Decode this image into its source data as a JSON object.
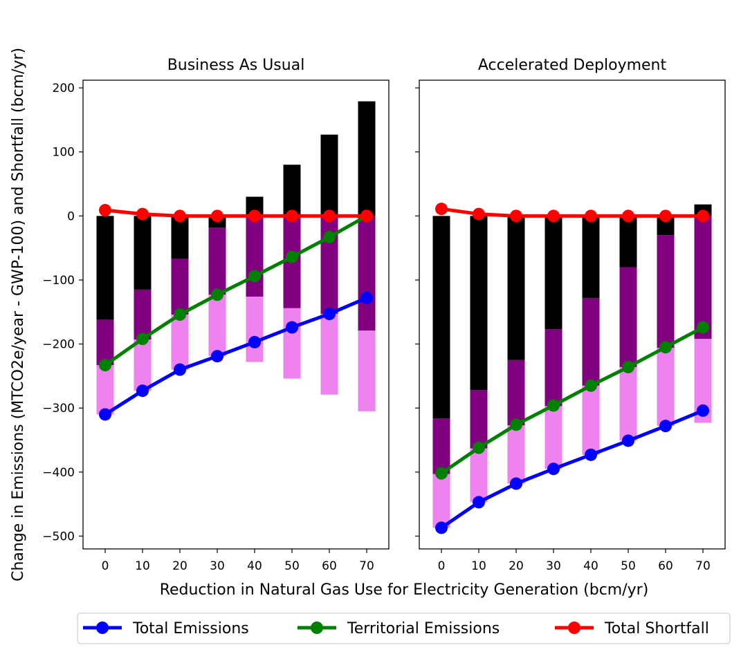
{
  "chart_data": {
    "type": "bar",
    "x": [
      0,
      10,
      20,
      30,
      40,
      50,
      60,
      70
    ],
    "xlabel": "Reduction in Natural Gas Use for Electricity Generation (bcm/yr)",
    "ylabel": "Change in Emissions (MTCO2e/year - GWP-100) and Shortfall (bcm/yr)",
    "ylim": [
      -520,
      212
    ],
    "yticks": [
      200,
      100,
      0,
      -100,
      -200,
      -300,
      -400,
      -500
    ],
    "ytick_labels": [
      "200",
      "100",
      "0",
      "−100",
      "−200",
      "−300",
      "−400",
      "−500"
    ],
    "xtick_labels": [
      "0",
      "10",
      "20",
      "30",
      "40",
      "50",
      "60",
      "70"
    ],
    "grid": false,
    "legend": {
      "placement": "bottom-center",
      "entries": [
        "Total Emissions",
        "Territorial Emissions",
        "Total Shortfall"
      ]
    },
    "colors": {
      "black_bar": "#000000",
      "purple_bar": "#800080",
      "violet_bar": "#ee82ee",
      "total_emissions": "#0000ff",
      "territorial_emissions": "#008000",
      "total_shortfall": "#ff0000"
    },
    "panels": [
      {
        "title": "Business As Usual",
        "bars": {
          "black": [
            [
              0,
              -162
            ],
            [
              0,
              -115
            ],
            [
              0,
              -67
            ],
            [
              0,
              -18
            ],
            [
              0,
              30
            ],
            [
              0,
              80
            ],
            [
              0,
              127
            ],
            [
              0,
              179
            ]
          ],
          "purple": [
            [
              -162,
              -233
            ],
            [
              -115,
              -193
            ],
            [
              -67,
              -154
            ],
            [
              -18,
              -123
            ],
            [
              0,
              -126
            ],
            [
              0,
              -144
            ],
            [
              0,
              -153
            ],
            [
              0,
              -179
            ]
          ],
          "violet": [
            [
              -233,
              -310
            ],
            [
              -193,
              -273
            ],
            [
              -154,
              -240
            ],
            [
              -123,
              -219
            ],
            [
              -126,
              -228
            ],
            [
              -144,
              -254
            ],
            [
              -153,
              -279
            ],
            [
              -179,
              -305
            ]
          ]
        },
        "lines": {
          "Total Emissions": [
            -310,
            -273,
            -240,
            -219,
            -197,
            -174,
            -153,
            -128
          ],
          "Territorial Emissions": [
            -233,
            -192,
            -154,
            -123,
            -94,
            -64,
            -33,
            0
          ],
          "Total Shortfall": [
            9,
            3,
            0,
            0,
            0,
            0,
            0,
            0
          ]
        }
      },
      {
        "title": "Accelerated Deployment",
        "bars": {
          "black": [
            [
              0,
              -316
            ],
            [
              0,
              -272
            ],
            [
              0,
              -225
            ],
            [
              0,
              -177
            ],
            [
              0,
              -128
            ],
            [
              0,
              -80
            ],
            [
              0,
              -30
            ],
            [
              0,
              18
            ]
          ],
          "purple": [
            [
              -316,
              -403
            ],
            [
              -272,
              -363
            ],
            [
              -225,
              -327
            ],
            [
              -177,
              -297
            ],
            [
              -128,
              -265
            ],
            [
              -80,
              -236
            ],
            [
              -30,
              -206
            ],
            [
              0,
              -192
            ]
          ],
          "violet": [
            [
              -403,
              -487
            ],
            [
              -363,
              -447
            ],
            [
              -327,
              -418
            ],
            [
              -297,
              -395
            ],
            [
              -265,
              -373
            ],
            [
              -236,
              -351
            ],
            [
              -206,
              -328
            ],
            [
              -192,
              -323
            ]
          ]
        },
        "lines": {
          "Total Emissions": [
            -487,
            -447,
            -418,
            -395,
            -373,
            -351,
            -328,
            -304
          ],
          "Territorial Emissions": [
            -402,
            -362,
            -326,
            -296,
            -265,
            -236,
            -205,
            -174
          ],
          "Total Shortfall": [
            11,
            3,
            0,
            0,
            0,
            0,
            0,
            0
          ]
        }
      }
    ]
  }
}
